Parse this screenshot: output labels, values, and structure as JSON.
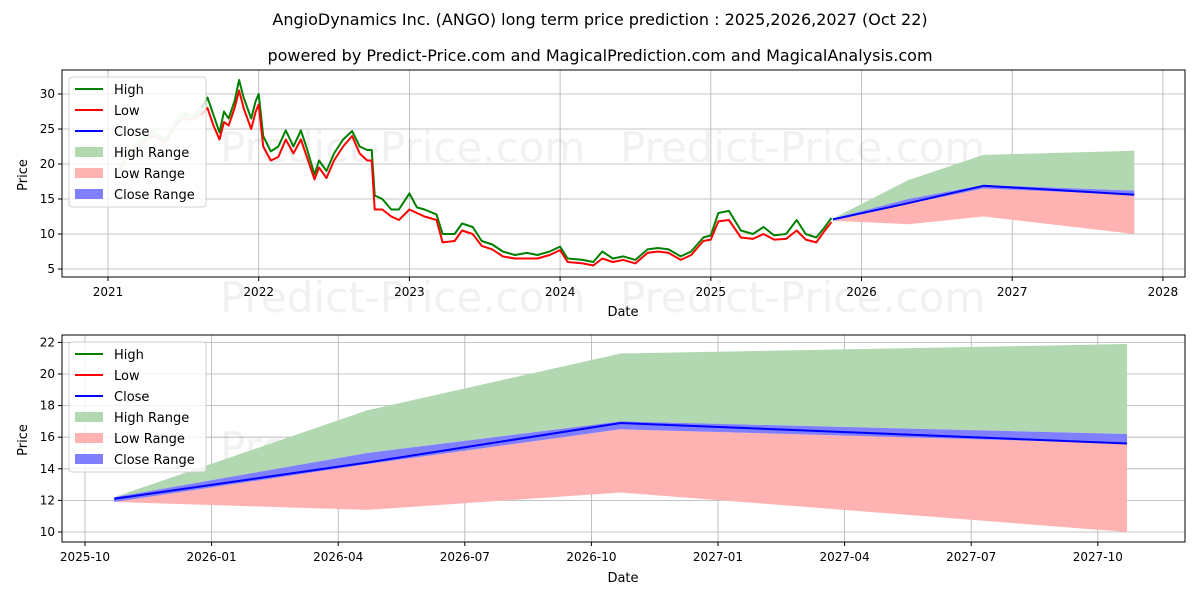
{
  "header": {
    "title": "AngioDynamics Inc. (ANGO) long term price prediction : 2025,2026,2027 (Oct 22)",
    "subtitle": "powered by Predict-Price.com and MagicalPrediction.com and MagicalAnalysis.com"
  },
  "watermark": "Predict-Price.com",
  "colors": {
    "high": "#008000",
    "low": "#ff0000",
    "close": "#0000ff",
    "high_range": "#b2d8b2",
    "low_range": "#ffb2b2",
    "close_range": "#7f7fff",
    "grid": "#b0b0b0"
  },
  "legend": [
    "High",
    "Low",
    "Close",
    "High Range",
    "Low Range",
    "Close Range"
  ],
  "chart_data": [
    {
      "type": "line",
      "title": "ANGO price history and forecast (2021-2028)",
      "xlabel": "Date",
      "ylabel": "Price",
      "xticks": [
        "2021",
        "2022",
        "2023",
        "2024",
        "2025",
        "2026",
        "2027",
        "2028"
      ],
      "yticks": [
        5,
        10,
        15,
        20,
        25,
        30
      ],
      "xlim": [
        2020.7,
        2028.15
      ],
      "ylim": [
        3.9,
        33.4
      ],
      "grid": true,
      "legend_position": "upper left",
      "history_faded_until": 2021.65,
      "history": {
        "x": [
          2021.05,
          2021.12,
          2021.2,
          2021.3,
          2021.38,
          2021.45,
          2021.5,
          2021.56,
          2021.62,
          2021.66,
          2021.7,
          2021.74,
          2021.77,
          2021.8,
          2021.84,
          2021.87,
          2021.9,
          2021.95,
          2021.98,
          2022.0,
          2022.03,
          2022.08,
          2022.13,
          2022.18,
          2022.23,
          2022.28,
          2022.32,
          2022.37,
          2022.4,
          2022.45,
          2022.5,
          2022.56,
          2022.62,
          2022.67,
          2022.72,
          2022.75,
          2022.77,
          2022.82,
          2022.88,
          2022.93,
          2023.0,
          2023.05,
          2023.1,
          2023.18,
          2023.22,
          2023.3,
          2023.35,
          2023.42,
          2023.48,
          2023.55,
          2023.62,
          2023.7,
          2023.78,
          2023.85,
          2023.93,
          2024.0,
          2024.05,
          2024.15,
          2024.22,
          2024.28,
          2024.35,
          2024.42,
          2024.5,
          2024.58,
          2024.65,
          2024.72,
          2024.8,
          2024.87,
          2024.95,
          2025.0,
          2025.05,
          2025.12,
          2025.2,
          2025.28,
          2025.35,
          2025.42,
          2025.5,
          2025.57,
          2025.63,
          2025.7,
          2025.75,
          2025.8
        ],
        "high": [
          19.0,
          21.5,
          23.5,
          25.0,
          23.8,
          26.5,
          27.5,
          27.0,
          28.0,
          29.5,
          27.0,
          24.5,
          27.5,
          26.5,
          29.0,
          32.0,
          29.5,
          26.5,
          29.0,
          30.0,
          24.0,
          21.8,
          22.5,
          24.8,
          22.5,
          24.8,
          22.2,
          18.5,
          20.5,
          19.0,
          21.5,
          23.5,
          24.7,
          22.5,
          22.0,
          22.0,
          15.5,
          15.0,
          13.5,
          13.5,
          15.8,
          13.8,
          13.5,
          12.8,
          10.0,
          10.0,
          11.5,
          11.0,
          9.0,
          8.5,
          7.5,
          7.0,
          7.3,
          7.0,
          7.5,
          8.2,
          6.5,
          6.3,
          6.0,
          7.5,
          6.5,
          6.8,
          6.3,
          7.8,
          8.0,
          7.8,
          6.8,
          7.5,
          9.5,
          9.8,
          13.0,
          13.3,
          10.5,
          10.0,
          11.0,
          9.8,
          10.0,
          12.0,
          10.0,
          9.5,
          10.8,
          12.3
        ],
        "low": [
          18.0,
          20.5,
          22.5,
          24.0,
          23.0,
          25.5,
          26.5,
          26.2,
          27.0,
          28.0,
          25.5,
          23.5,
          26.0,
          25.5,
          28.0,
          30.5,
          28.0,
          25.0,
          27.5,
          28.5,
          22.5,
          20.5,
          21.0,
          23.5,
          21.5,
          23.5,
          21.0,
          17.8,
          19.5,
          18.0,
          20.5,
          22.5,
          24.0,
          21.5,
          20.5,
          20.5,
          13.5,
          13.5,
          12.5,
          12.0,
          13.5,
          13.0,
          12.5,
          12.0,
          8.8,
          9.0,
          10.5,
          10.0,
          8.3,
          7.8,
          6.8,
          6.5,
          6.5,
          6.5,
          7.0,
          7.7,
          6.0,
          5.8,
          5.5,
          6.5,
          6.0,
          6.3,
          5.8,
          7.3,
          7.5,
          7.3,
          6.3,
          7.0,
          9.0,
          9.2,
          11.8,
          12.0,
          9.5,
          9.3,
          10.0,
          9.2,
          9.3,
          10.5,
          9.2,
          8.8,
          10.3,
          11.7
        ]
      },
      "forecast": {
        "x": [
          2025.81,
          2026.31,
          2026.81,
          2027.81
        ],
        "high_upper": [
          12.2,
          17.7,
          21.3,
          21.9
        ],
        "low_lower": [
          11.9,
          11.4,
          12.5,
          10.0
        ],
        "close": [
          12.1,
          14.4,
          16.9,
          15.6
        ],
        "close_upper": [
          12.2,
          15.0,
          17.0,
          16.2
        ],
        "close_lower": [
          11.9,
          14.3,
          16.5,
          15.6
        ]
      }
    },
    {
      "type": "area",
      "title": "ANGO forecast detail (Oct 2025 - Oct 2027)",
      "xlabel": "Date",
      "ylabel": "Price",
      "xticks": [
        "2025-10",
        "2026-01",
        "2026-04",
        "2026-07",
        "2026-10",
        "2027-01",
        "2027-04",
        "2027-07",
        "2027-10"
      ],
      "yticks": [
        10,
        12,
        14,
        16,
        18,
        20,
        22
      ],
      "ylim": [
        9.4,
        22.5
      ],
      "grid": true,
      "legend_position": "upper left",
      "series": [
        {
          "name": "High Range (upper bound)",
          "x": [
            "2025-10-22",
            "2026-04-22",
            "2026-10-22",
            "2027-10-22"
          ],
          "values": [
            12.2,
            17.7,
            21.3,
            21.9
          ]
        },
        {
          "name": "Low Range (lower bound)",
          "x": [
            "2025-10-22",
            "2026-04-22",
            "2026-10-22",
            "2027-10-22"
          ],
          "values": [
            11.9,
            11.4,
            12.5,
            10.0
          ]
        },
        {
          "name": "Close",
          "x": [
            "2025-10-22",
            "2026-04-22",
            "2026-10-22",
            "2027-10-22"
          ],
          "values": [
            12.1,
            14.4,
            16.9,
            15.6
          ]
        },
        {
          "name": "Close Range (upper)",
          "x": [
            "2025-10-22",
            "2026-04-22",
            "2026-10-22",
            "2027-10-22"
          ],
          "values": [
            12.2,
            15.0,
            17.0,
            16.2
          ]
        },
        {
          "name": "Close Range (lower)",
          "x": [
            "2025-10-22",
            "2026-04-22",
            "2026-10-22",
            "2027-10-22"
          ],
          "values": [
            11.9,
            14.3,
            16.5,
            15.6
          ]
        }
      ]
    }
  ]
}
